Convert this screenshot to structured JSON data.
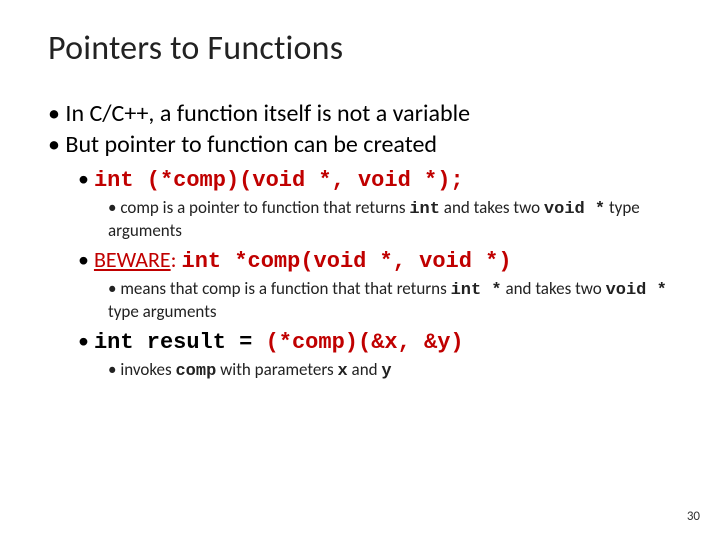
{
  "title": "Pointers to Functions",
  "colors": {
    "text": "#000000",
    "accent_red": "#c00000",
    "background": "#ffffff"
  },
  "fonts": {
    "heading_family": "Calibri",
    "body_family": "Calibri",
    "code_family": "Courier New",
    "title_size_pt": 34,
    "lvl1_size_pt": 24,
    "lvl2_size_pt": 22,
    "lvl3_size_pt": 17
  },
  "bullets": {
    "b1": "In C/C++, a function itself is not a variable",
    "b2": "But pointer to function can be created",
    "b2a_code": "int (*comp)(void *, void *);",
    "b2a_i_pre": "comp is a pointer to function that returns ",
    "b2a_i_int": "int",
    "b2a_i_mid": " and takes two ",
    "b2a_i_void": "void *",
    "b2a_i_post": " type arguments",
    "b2b_beware": "BEWARE",
    "b2b_colon": ": ",
    "b2b_code": "int *comp(void *, void *)",
    "b2b_i_pre": "means that comp is a function that that returns ",
    "b2b_i_int": "int *",
    "b2b_i_mid": " and takes two ",
    "b2b_i_void": "void *",
    "b2b_i_post": " type arguments",
    "b2c_left": "int result = ",
    "b2c_right": "(*comp)(&x, &y)",
    "b2c_i_pre": "invokes ",
    "b2c_i_comp": "comp",
    "b2c_i_mid": " with parameters ",
    "b2c_i_x": "x",
    "b2c_i_and": " and ",
    "b2c_i_y": "y"
  },
  "page_number": "30"
}
